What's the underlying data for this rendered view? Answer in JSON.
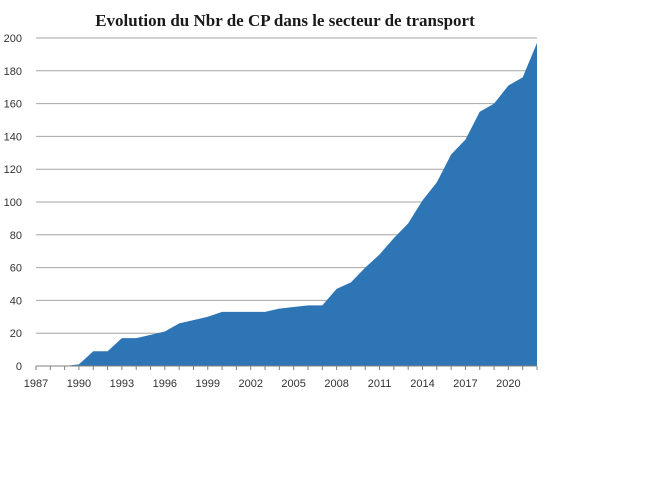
{
  "chart_data": {
    "type": "area",
    "title": "Evolution du Nbr de CP dans le secteur de transport",
    "xlabel": "",
    "ylabel": "",
    "x": [
      1987,
      1988,
      1989,
      1990,
      1991,
      1992,
      1993,
      1994,
      1995,
      1996,
      1997,
      1998,
      1999,
      2000,
      2001,
      2002,
      2003,
      2004,
      2005,
      2006,
      2007,
      2008,
      2009,
      2010,
      2011,
      2012,
      2013,
      2014,
      2015,
      2016,
      2017,
      2018,
      2019,
      2020,
      2021,
      2022
    ],
    "series": [
      {
        "name": "",
        "values": [
          0,
          0,
          0,
          1,
          9,
          9,
          17,
          17,
          19,
          21,
          26,
          28,
          30,
          33,
          33,
          33,
          33,
          35,
          36,
          37,
          37,
          47,
          51,
          60,
          68,
          78,
          87,
          101,
          112,
          129,
          138,
          155,
          160,
          171,
          176,
          197
        ]
      }
    ],
    "x_ticks": [
      "1987",
      "1990",
      "1993",
      "1996",
      "1999",
      "2002",
      "2005",
      "2008",
      "2011",
      "2014",
      "2017",
      "2020"
    ],
    "y_ticks": [
      "0",
      "20",
      "40",
      "60",
      "80",
      "100",
      "120",
      "140",
      "160",
      "180",
      "200"
    ],
    "ylim": [
      0,
      200
    ],
    "grid": true,
    "legend": "none",
    "colors": {
      "area": "#2e75b6",
      "grid": "#a6a6a6",
      "axis": "#808080"
    }
  }
}
